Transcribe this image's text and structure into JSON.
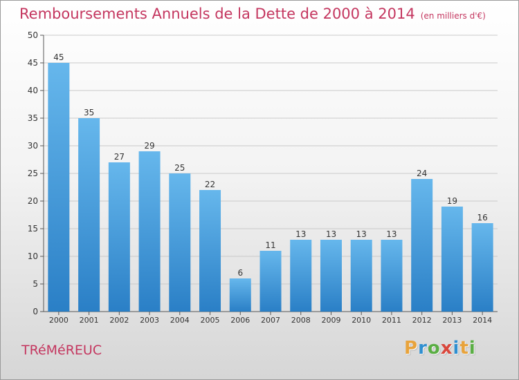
{
  "title": "Remboursements Annuels de la Dette de 2000 à 2014",
  "unit_label": "(en milliers d'€)",
  "commune": "TRéMéREUC",
  "logo": {
    "letters": [
      "P",
      "r",
      "o",
      "x",
      "i",
      "t",
      "i"
    ],
    "colors": [
      "#e8a33b",
      "#2f8fd0",
      "#5aae44",
      "#d9473c",
      "#2f8fd0",
      "#e8a33b",
      "#5aae44"
    ]
  },
  "colors": {
    "bar_light": "#66b7ec",
    "bar_dark": "#2a7fc6",
    "title": "#c4365f"
  },
  "chart_data": {
    "type": "bar",
    "title": "Remboursements Annuels de la Dette de 2000 à 2014",
    "xlabel": "",
    "ylabel": "",
    "ylim": [
      0,
      50
    ],
    "yticks": [
      0,
      5,
      10,
      15,
      20,
      25,
      30,
      35,
      40,
      45,
      50
    ],
    "grid": true,
    "categories": [
      "2000",
      "2001",
      "2002",
      "2003",
      "2004",
      "2005",
      "2006",
      "2007",
      "2008",
      "2009",
      "2010",
      "2011",
      "2012",
      "2013",
      "2014"
    ],
    "values": [
      45,
      35,
      27,
      29,
      25,
      22,
      6,
      11,
      13,
      13,
      13,
      13,
      24,
      19,
      16
    ]
  }
}
